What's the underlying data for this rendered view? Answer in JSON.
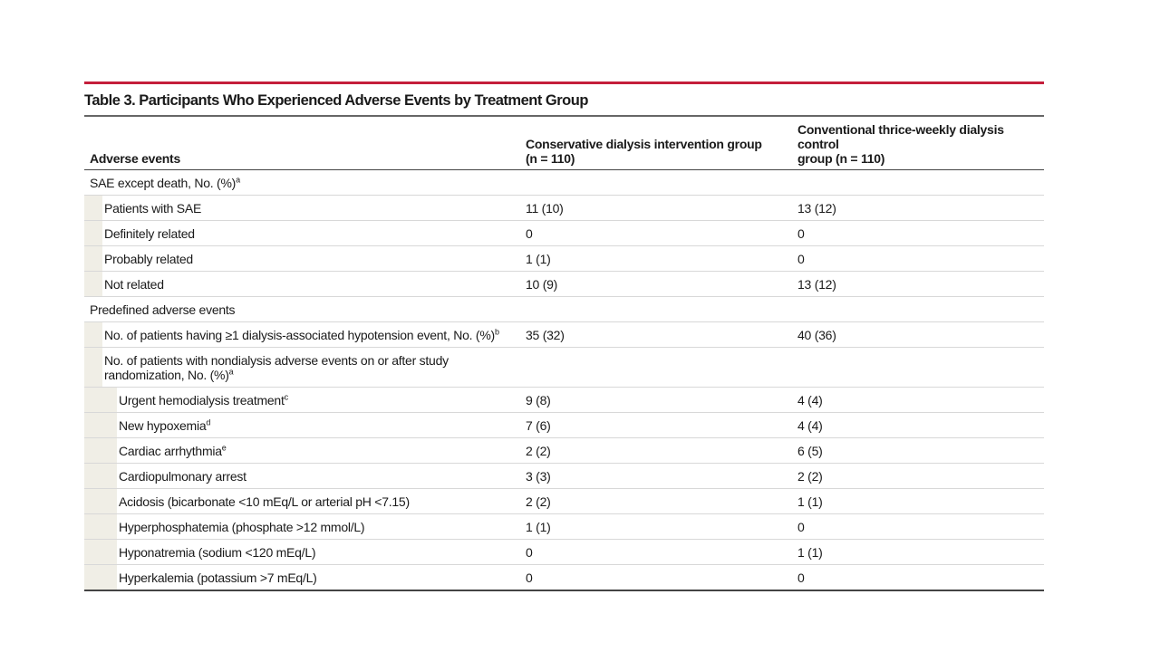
{
  "title": "Table 3. Participants Who Experienced Adverse Events by Treatment Group",
  "headers": {
    "col1": "Adverse events",
    "col2_line1": "Conservative dialysis intervention group",
    "col2_line2": "(n = 110)",
    "col3_line1": "Conventional thrice-weekly dialysis control",
    "col3_line2": "group (n = 110)"
  },
  "rows": [
    {
      "label": "SAE except death, No. (%)",
      "sup": "a",
      "level": 0,
      "v1": "",
      "v2": ""
    },
    {
      "label": "Patients with SAE",
      "sup": "",
      "level": 1,
      "v1": "11 (10)",
      "v2": "13 (12)"
    },
    {
      "label": "Definitely related",
      "sup": "",
      "level": 1,
      "v1": "0",
      "v2": "0"
    },
    {
      "label": "Probably related",
      "sup": "",
      "level": 1,
      "v1": "1 (1)",
      "v2": "0"
    },
    {
      "label": "Not related",
      "sup": "",
      "level": 1,
      "v1": "10 (9)",
      "v2": "13 (12)"
    },
    {
      "label": "Predefined adverse events",
      "sup": "",
      "level": 0,
      "v1": "",
      "v2": ""
    },
    {
      "label": "No. of patients having ≥1 dialysis-associated hypotension event, No. (%)",
      "sup": "b",
      "level": 1,
      "v1": "35 (32)",
      "v2": "40 (36)"
    },
    {
      "label": "No. of patients with nondialysis adverse events on or after study randomization, No. (%)",
      "sup": "a",
      "level": 1,
      "v1": "",
      "v2": ""
    },
    {
      "label": "Urgent hemodialysis treatment",
      "sup": "c",
      "level": 2,
      "v1": "9 (8)",
      "v2": "4 (4)"
    },
    {
      "label": "New hypoxemia",
      "sup": "d",
      "level": 2,
      "v1": "7 (6)",
      "v2": "4 (4)"
    },
    {
      "label": "Cardiac arrhythmia",
      "sup": "e",
      "level": 2,
      "v1": "2 (2)",
      "v2": "6 (5)"
    },
    {
      "label": "Cardiopulmonary arrest",
      "sup": "",
      "level": 2,
      "v1": "3 (3)",
      "v2": "2 (2)"
    },
    {
      "label": "Acidosis (bicarbonate <10 mEq/L or arterial pH <7.15)",
      "sup": "",
      "level": 2,
      "v1": "2 (2)",
      "v2": "1 (1)"
    },
    {
      "label": "Hyperphosphatemia (phosphate >12 mmol/L)",
      "sup": "",
      "level": 2,
      "v1": "1 (1)",
      "v2": "0"
    },
    {
      "label": "Hyponatremia (sodium <120 mEq/L)",
      "sup": "",
      "level": 2,
      "v1": "0",
      "v2": "1 (1)"
    },
    {
      "label": "Hyperkalemia (potassium >7 mEq/L)",
      "sup": "",
      "level": 2,
      "v1": "0",
      "v2": "0"
    }
  ],
  "colors": {
    "accent_rule": "#c41e3a",
    "indent_shade": "#f0eee6"
  }
}
